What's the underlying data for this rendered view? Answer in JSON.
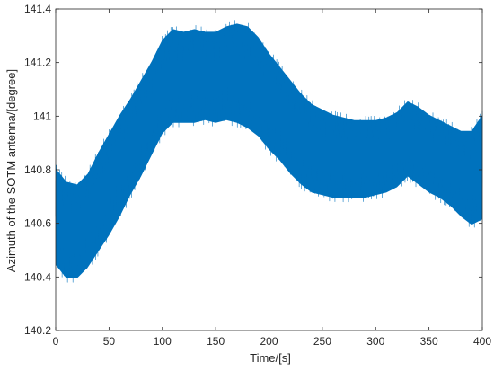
{
  "chart_data": {
    "type": "line",
    "title": "",
    "xlabel": "Time/[s]",
    "ylabel": "Azimuth of the SOTM antenna/[degree]",
    "xlim": [
      0,
      400
    ],
    "ylim": [
      140.2,
      141.4
    ],
    "xticks": [
      0,
      50,
      100,
      150,
      200,
      250,
      300,
      350,
      400
    ],
    "yticks": [
      140.2,
      140.4,
      140.6,
      140.8,
      141,
      141.2,
      141.4
    ],
    "xtick_labels": [
      "0",
      "50",
      "100",
      "150",
      "200",
      "250",
      "300",
      "350",
      "400"
    ],
    "ytick_labels": [
      "140.2",
      "140.4",
      "140.6",
      "140.8",
      "141",
      "141.2",
      "141.4"
    ],
    "grid": false,
    "legend": "none",
    "series": [
      {
        "color": "#0072BD",
        "description_of_band": "rapid oscillation; upper and lower envelope points (time, degree)",
        "upper_envelope": [
          [
            0,
            140.82
          ],
          [
            10,
            140.77
          ],
          [
            20,
            140.76
          ],
          [
            30,
            140.8
          ],
          [
            40,
            140.88
          ],
          [
            50,
            140.95
          ],
          [
            60,
            141.02
          ],
          [
            70,
            141.08
          ],
          [
            80,
            141.15
          ],
          [
            90,
            141.22
          ],
          [
            100,
            141.3
          ],
          [
            110,
            141.34
          ],
          [
            120,
            141.33
          ],
          [
            130,
            141.34
          ],
          [
            140,
            141.33
          ],
          [
            150,
            141.33
          ],
          [
            160,
            141.35
          ],
          [
            170,
            141.36
          ],
          [
            180,
            141.35
          ],
          [
            190,
            141.31
          ],
          [
            200,
            141.25
          ],
          [
            210,
            141.2
          ],
          [
            220,
            141.15
          ],
          [
            230,
            141.1
          ],
          [
            240,
            141.06
          ],
          [
            250,
            141.04
          ],
          [
            260,
            141.02
          ],
          [
            270,
            141.01
          ],
          [
            280,
            141.0
          ],
          [
            290,
            141.0
          ],
          [
            300,
            141.0
          ],
          [
            310,
            141.01
          ],
          [
            320,
            141.03
          ],
          [
            330,
            141.07
          ],
          [
            340,
            141.05
          ],
          [
            350,
            141.02
          ],
          [
            360,
            141.0
          ],
          [
            370,
            140.98
          ],
          [
            380,
            140.96
          ],
          [
            390,
            140.96
          ],
          [
            400,
            141.02
          ]
        ],
        "lower_envelope": [
          [
            0,
            140.43
          ],
          [
            10,
            140.38
          ],
          [
            20,
            140.38
          ],
          [
            30,
            140.42
          ],
          [
            40,
            140.48
          ],
          [
            50,
            140.54
          ],
          [
            60,
            140.61
          ],
          [
            70,
            140.69
          ],
          [
            80,
            140.76
          ],
          [
            90,
            140.84
          ],
          [
            100,
            140.92
          ],
          [
            110,
            140.96
          ],
          [
            120,
            140.96
          ],
          [
            130,
            140.96
          ],
          [
            140,
            140.97
          ],
          [
            150,
            140.96
          ],
          [
            160,
            140.97
          ],
          [
            170,
            140.96
          ],
          [
            180,
            140.94
          ],
          [
            190,
            140.91
          ],
          [
            200,
            140.86
          ],
          [
            210,
            140.82
          ],
          [
            220,
            140.77
          ],
          [
            230,
            140.73
          ],
          [
            240,
            140.7
          ],
          [
            250,
            140.69
          ],
          [
            260,
            140.68
          ],
          [
            270,
            140.68
          ],
          [
            280,
            140.68
          ],
          [
            290,
            140.68
          ],
          [
            300,
            140.69
          ],
          [
            310,
            140.7
          ],
          [
            320,
            140.72
          ],
          [
            330,
            140.76
          ],
          [
            340,
            140.73
          ],
          [
            350,
            140.7
          ],
          [
            360,
            140.68
          ],
          [
            370,
            140.65
          ],
          [
            380,
            140.61
          ],
          [
            390,
            140.58
          ],
          [
            400,
            140.6
          ]
        ]
      }
    ]
  }
}
